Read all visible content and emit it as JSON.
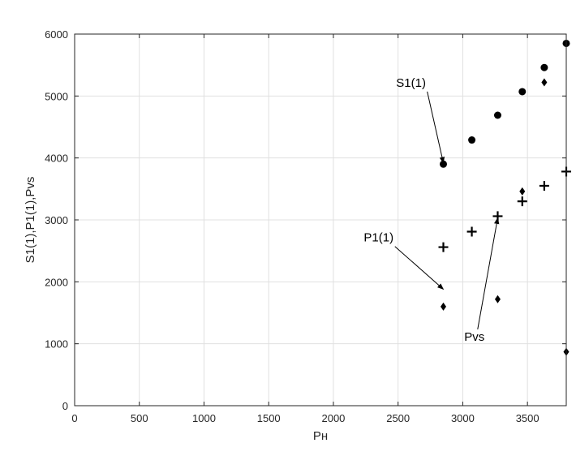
{
  "chart_data": {
    "type": "scatter",
    "xlabel": "Pн",
    "ylabel": "S1(1),P1(1),Pvs",
    "xlim": [
      0,
      3800
    ],
    "ylim": [
      0,
      6000
    ],
    "grid": true,
    "x_ticks": [
      0,
      500,
      1000,
      1500,
      2000,
      2500,
      3000,
      3500
    ],
    "y_ticks": [
      0,
      1000,
      2000,
      3000,
      4000,
      5000,
      6000
    ],
    "series": [
      {
        "marker": "circle",
        "color": "#000000",
        "points": [
          [
            2850,
            3900
          ],
          [
            3070,
            4290
          ],
          [
            3270,
            4690
          ],
          [
            3460,
            5070
          ],
          [
            3630,
            5460
          ],
          [
            3800,
            5850
          ]
        ]
      },
      {
        "marker": "diamond",
        "color": "#000000",
        "points": [
          [
            2850,
            1600
          ],
          [
            3270,
            1720
          ],
          [
            3460,
            3460
          ],
          [
            3630,
            5220
          ],
          [
            3800,
            870
          ]
        ]
      },
      {
        "marker": "plus",
        "color": "#000000",
        "points": [
          [
            2850,
            2560
          ],
          [
            3070,
            2810
          ],
          [
            3270,
            3060
          ],
          [
            3460,
            3300
          ],
          [
            3630,
            3550
          ],
          [
            3800,
            3780
          ]
        ]
      }
    ],
    "annotations": [
      {
        "text": "S1(1)",
        "text_at": [
          2600,
          5150
        ],
        "arrow_to": [
          2850,
          3920
        ]
      },
      {
        "text": "P1(1)",
        "text_at": [
          2350,
          2650
        ],
        "arrow_to": [
          2850,
          1880
        ]
      },
      {
        "text": "Pvs",
        "text_at": [
          3090,
          1050
        ],
        "arrow_to": [
          3270,
          3030
        ]
      }
    ]
  }
}
